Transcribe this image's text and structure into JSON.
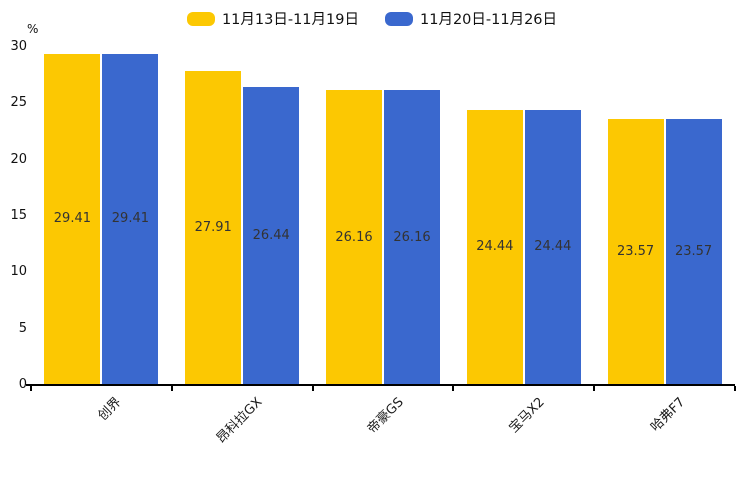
{
  "chart_data": {
    "type": "bar",
    "title": "",
    "unit_label": "%",
    "categories": [
      "创界",
      "昂科拉GX",
      "帝豪GS",
      "宝马X2",
      "哈弗F7"
    ],
    "series": [
      {
        "name": "11月13日-11月19日",
        "color": "#FCC802",
        "values": [
          29.41,
          27.91,
          26.16,
          24.44,
          23.57
        ]
      },
      {
        "name": "11月20日-11月26日",
        "color": "#3A68CE",
        "values": [
          29.41,
          26.44,
          26.16,
          24.44,
          23.57
        ]
      }
    ],
    "ylim": [
      0,
      30
    ],
    "yticks": [
      0,
      5,
      10,
      15,
      20,
      25,
      30
    ],
    "grid": false,
    "legend_position": "top-center",
    "value_label_position": "inside-center",
    "xtick_rotation_deg": 45,
    "axis_color": "#000000",
    "value_label_color": "#333333",
    "tick_label_color": "#111111"
  }
}
